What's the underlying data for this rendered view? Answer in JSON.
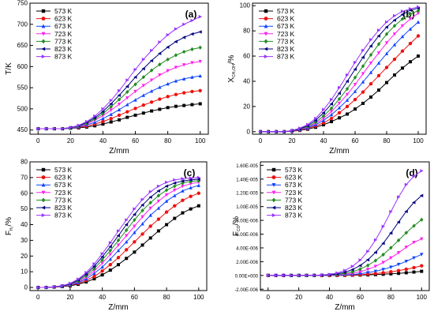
{
  "legend_labels": [
    "573 K",
    "623 K",
    "673 K",
    "723 K",
    "773 K",
    "823 K",
    "873 K"
  ],
  "colors": [
    "#000000",
    "#ee1111",
    "#1144ff",
    "#ff22ee",
    "#228b22",
    "#000080",
    "#9933ff"
  ],
  "x": [
    0,
    5,
    10,
    15,
    20,
    25,
    30,
    35,
    40,
    45,
    50,
    55,
    60,
    65,
    70,
    75,
    80,
    85,
    90,
    95,
    100
  ],
  "chart_data": [
    {
      "type": "line",
      "panel_label": "(a)",
      "ylabel": "T/K",
      "xlabel": "Z/mm",
      "xlim": [
        -5,
        105
      ],
      "ylim": [
        440,
        750
      ],
      "xticks": [
        0,
        20,
        40,
        60,
        80,
        100
      ],
      "yticks": [
        450,
        500,
        550,
        600,
        650,
        700,
        750
      ],
      "ytick_labels": [
        "450",
        "500",
        "550",
        "600",
        "650",
        "700",
        "750"
      ],
      "markers": [
        "square",
        "circle",
        "triangle-up",
        "triangle-down",
        "diamond",
        "triangle-left",
        "triangle-right"
      ],
      "legend_position": "top-left",
      "series": [
        {
          "name": "573 K",
          "values": [
            453,
            453,
            453,
            453,
            454,
            455,
            457,
            460,
            464,
            469,
            474,
            480,
            485,
            490,
            495,
            499,
            503,
            506,
            508,
            510,
            512
          ]
        },
        {
          "name": "623 K",
          "values": [
            453,
            453,
            453,
            453,
            454,
            456,
            459,
            464,
            470,
            477,
            485,
            493,
            501,
            509,
            516,
            523,
            529,
            534,
            538,
            541,
            543
          ]
        },
        {
          "name": "673 K",
          "values": [
            453,
            453,
            453,
            453,
            454,
            457,
            462,
            468,
            477,
            487,
            498,
            510,
            521,
            532,
            542,
            551,
            559,
            566,
            571,
            575,
            578
          ]
        },
        {
          "name": "723 K",
          "values": [
            453,
            453,
            453,
            453,
            455,
            458,
            464,
            473,
            484,
            497,
            511,
            526,
            541,
            555,
            568,
            580,
            590,
            598,
            604,
            609,
            612
          ]
        },
        {
          "name": "773 K",
          "values": [
            453,
            453,
            453,
            453,
            455,
            459,
            466,
            476,
            489,
            505,
            522,
            540,
            558,
            575,
            591,
            605,
            617,
            627,
            635,
            641,
            645
          ]
        },
        {
          "name": "823 K",
          "values": [
            453,
            453,
            453,
            453,
            456,
            460,
            468,
            479,
            494,
            512,
            532,
            553,
            575,
            595,
            614,
            631,
            646,
            659,
            669,
            677,
            682
          ]
        },
        {
          "name": "873 K",
          "values": [
            453,
            453,
            453,
            453,
            456,
            461,
            470,
            483,
            500,
            520,
            543,
            568,
            593,
            617,
            638,
            658,
            675,
            689,
            700,
            709,
            718
          ]
        }
      ]
    },
    {
      "type": "line",
      "panel_label": "(b)",
      "ylabel": "X",
      "ylabel_sub": "CH₃OH",
      "ylabel_suffix": "/%",
      "xlabel": "Z/mm",
      "xlim": [
        -5,
        105
      ],
      "ylim": [
        -2,
        102
      ],
      "xticks": [
        0,
        20,
        40,
        60,
        80,
        100
      ],
      "yticks": [
        0,
        20,
        40,
        60,
        80,
        100
      ],
      "ytick_labels": [
        "0",
        "20",
        "40",
        "60",
        "80",
        "100"
      ],
      "markers": [
        "square",
        "circle",
        "triangle-up",
        "triangle-down",
        "diamond",
        "triangle-left",
        "triangle-right"
      ],
      "legend_position": "top-left",
      "series": [
        {
          "name": "573 K",
          "values": [
            0,
            0,
            0,
            0,
            0.4,
            1,
            2,
            3.5,
            5.5,
            8,
            11,
            14,
            18,
            22.5,
            27.5,
            33,
            39,
            45,
            50.5,
            55.5,
            60
          ]
        },
        {
          "name": "623 K",
          "values": [
            0,
            0,
            0,
            0,
            0.5,
            1.2,
            2.5,
            4.5,
            7,
            10.5,
            15,
            20,
            25.5,
            31.5,
            38,
            44.5,
            51,
            57.5,
            64,
            70,
            76
          ]
        },
        {
          "name": "673 K",
          "values": [
            0,
            0,
            0,
            0,
            0.6,
            1.5,
            3,
            5.5,
            9,
            13.5,
            19,
            25,
            32,
            39.5,
            47,
            54.5,
            62,
            69,
            75.5,
            81.5,
            87
          ]
        },
        {
          "name": "723 K",
          "values": [
            0,
            0,
            0,
            0,
            0.7,
            1.7,
            3.5,
            6.5,
            10.5,
            16,
            22.5,
            29.5,
            37.5,
            46,
            54.5,
            62.5,
            70.5,
            77.5,
            84,
            89.5,
            94
          ]
        },
        {
          "name": "773 K",
          "values": [
            0,
            0,
            0,
            0,
            0.8,
            2,
            4,
            7.5,
            12.5,
            18.5,
            26,
            34,
            43,
            52,
            61,
            69.5,
            77.5,
            84,
            89.5,
            93.5,
            96
          ]
        },
        {
          "name": "823 K",
          "values": [
            0,
            0,
            0,
            0,
            0.9,
            2.3,
            4.8,
            9,
            15,
            22,
            30.5,
            40,
            49.5,
            59,
            68,
            76,
            83,
            88.5,
            93,
            96.5,
            98
          ]
        },
        {
          "name": "873 K",
          "values": [
            0,
            0,
            0,
            0,
            1,
            2.8,
            5.7,
            10.5,
            17.5,
            25.5,
            35,
            45,
            55,
            64.5,
            73,
            80.5,
            87,
            92,
            95.5,
            97.5,
            99
          ]
        }
      ]
    },
    {
      "type": "line",
      "panel_label": "(c)",
      "ylabel": "F",
      "ylabel_sub": "H₂",
      "ylabel_suffix": "/%",
      "xlabel": "Z/mm",
      "xlim": [
        -5,
        105
      ],
      "ylim": [
        -2,
        80
      ],
      "xticks": [
        0,
        20,
        40,
        60,
        80,
        100
      ],
      "yticks": [
        0,
        10,
        20,
        30,
        40,
        50,
        60,
        70,
        80
      ],
      "ytick_labels": [
        "0",
        "10",
        "20",
        "30",
        "40",
        "50",
        "60",
        "70",
        "80"
      ],
      "markers": [
        "square",
        "circle",
        "triangle-up",
        "triangle-down",
        "diamond",
        "triangle-left",
        "triangle-right"
      ],
      "legend_position": "top-left",
      "series": [
        {
          "name": "573 K",
          "values": [
            0,
            0,
            0.2,
            0.5,
            1,
            2,
            3.5,
            5.5,
            8,
            11,
            14.5,
            18.5,
            22.5,
            27,
            31.5,
            36,
            40,
            44,
            47.5,
            50,
            52
          ]
        },
        {
          "name": "623 K",
          "values": [
            0,
            0,
            0.2,
            0.6,
            1.3,
            2.5,
            4.5,
            7,
            10.5,
            14.5,
            19,
            24,
            29,
            34,
            39,
            43.5,
            48,
            52,
            55.5,
            58,
            60
          ]
        },
        {
          "name": "673 K",
          "values": [
            0,
            0,
            0.3,
            0.7,
            1.5,
            3,
            5.5,
            9,
            13,
            18,
            23.5,
            29,
            35,
            40.5,
            46,
            50.5,
            55,
            58.5,
            61.5,
            63.5,
            65
          ]
        },
        {
          "name": "723 K",
          "values": [
            0,
            0,
            0.3,
            0.8,
            1.7,
            3.5,
            6.5,
            10.5,
            15.5,
            21,
            27,
            33,
            39,
            45,
            50.5,
            55,
            59,
            62,
            64.5,
            66,
            67
          ]
        },
        {
          "name": "773 K",
          "values": [
            0,
            0,
            0.3,
            0.9,
            2,
            4,
            7.5,
            12,
            17.5,
            23.5,
            30,
            36.5,
            43,
            49,
            54,
            58.5,
            62,
            64.5,
            66.5,
            67.5,
            68
          ]
        },
        {
          "name": "823 K",
          "values": [
            0,
            0,
            0.4,
            1,
            2.3,
            4.7,
            8.5,
            13.5,
            19.5,
            26,
            33,
            40,
            46.5,
            52.5,
            57.5,
            61.5,
            64.5,
            66.5,
            67.8,
            68.5,
            69
          ]
        },
        {
          "name": "873 K",
          "values": [
            0,
            0,
            0.4,
            1.1,
            2.6,
            5.3,
            9.5,
            15,
            21.5,
            28.5,
            36,
            43,
            50,
            56,
            61,
            64.5,
            67,
            68.5,
            69.3,
            69.7,
            70
          ]
        }
      ]
    },
    {
      "type": "line",
      "panel_label": "(d)",
      "ylabel": "F",
      "ylabel_sub": "CO",
      "ylabel_suffix": "/%",
      "xlabel": "Z/mm",
      "xlim": [
        -5,
        105
      ],
      "ylim": [
        -2.2e-06,
        1.65e-05
      ],
      "xticks": [
        0,
        20,
        40,
        60,
        80,
        100
      ],
      "yticks": [
        -2e-06,
        0,
        2e-06,
        4e-06,
        6e-06,
        8e-06,
        1e-05,
        1.2e-05,
        1.4e-05,
        1.6e-05
      ],
      "ytick_labels": [
        "-2.00E-006",
        "0.00E+000",
        "2.00E-006",
        "4.00E-006",
        "6.00E-006",
        "8.00E-006",
        "1.00E-005",
        "1.20E-005",
        "1.40E-005",
        "1.60E-005"
      ],
      "markers": [
        "square",
        "circle",
        "triangle-down",
        "triangle-down",
        "diamond",
        "triangle-left",
        "triangle-right"
      ],
      "legend_position": "top-left",
      "series": [
        {
          "name": "573 K",
          "values": [
            0,
            0,
            0,
            0,
            0,
            0,
            0,
            0,
            0,
            0,
            1e-08,
            3e-08,
            5e-08,
            8e-08,
            1.2e-07,
            1.7e-07,
            2.3e-07,
            3e-07,
            3.9e-07,
            4.9e-07,
            6e-07
          ]
        },
        {
          "name": "623 K",
          "values": [
            0,
            0,
            0,
            0,
            0,
            0,
            0,
            0,
            0,
            1e-08,
            3e-08,
            6e-08,
            1.1e-07,
            1.8e-07,
            2.7e-07,
            3.9e-07,
            5.3e-07,
            7e-07,
            9e-07,
            1.13e-06,
            1.4e-06
          ]
        },
        {
          "name": "673 K",
          "values": [
            0,
            0,
            0,
            0,
            0,
            0,
            0,
            0,
            1e-08,
            3e-08,
            7e-08,
            1.4e-07,
            2.5e-07,
            4e-07,
            6e-07,
            8.7e-07,
            1.2e-06,
            1.6e-06,
            2.05e-06,
            2.55e-06,
            3.05e-06
          ]
        },
        {
          "name": "723 K",
          "values": [
            0,
            0,
            0,
            0,
            0,
            0,
            0,
            1e-08,
            3e-08,
            8e-08,
            1.7e-07,
            3.2e-07,
            5.5e-07,
            8.8e-07,
            1.32e-06,
            1.88e-06,
            2.55e-06,
            3.3e-06,
            4.1e-06,
            4.8e-06,
            5.3e-06
          ]
        },
        {
          "name": "773 K",
          "values": [
            0,
            0,
            0,
            0,
            0,
            0,
            1e-08,
            2e-08,
            6e-08,
            1.4e-07,
            2.9e-07,
            5.4e-07,
            9.2e-07,
            1.46e-06,
            2.16e-06,
            3.02e-06,
            4.02e-06,
            5.1e-06,
            6.2e-06,
            7.2e-06,
            8.1e-06
          ]
        },
        {
          "name": "823 K",
          "values": [
            0,
            0,
            0,
            0,
            0,
            0,
            1e-08,
            4e-08,
            1e-07,
            2.3e-07,
            4.6e-07,
            8.5e-07,
            1.44e-06,
            2.27e-06,
            3.35e-06,
            4.66e-06,
            6.16e-06,
            7.76e-06,
            9.3e-06,
            1.06e-05,
            1.16e-05
          ]
        },
        {
          "name": "873 K",
          "values": [
            0,
            0,
            0,
            0,
            0,
            1e-08,
            2e-08,
            6e-08,
            1.6e-07,
            3.6e-07,
            7.2e-07,
            1.32e-06,
            2.23e-06,
            3.5e-06,
            5.15e-06,
            7.12e-06,
            9.27e-06,
            1.14e-05,
            1.32e-05,
            1.44e-05,
            1.52e-05
          ]
        }
      ]
    }
  ]
}
